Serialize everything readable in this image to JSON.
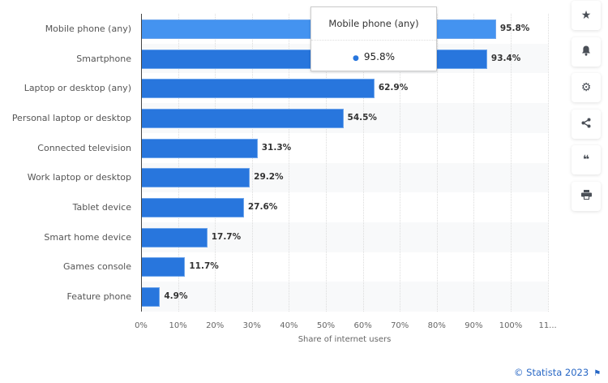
{
  "chart_data": {
    "type": "bar",
    "orientation": "horizontal",
    "title": "",
    "categories": [
      "Mobile phone (any)",
      "Smartphone",
      "Laptop or desktop (any)",
      "Personal laptop or desktop",
      "Connected television",
      "Work laptop or desktop",
      "Tablet device",
      "Smart home device",
      "Games console",
      "Feature phone"
    ],
    "values": [
      95.8,
      93.4,
      62.9,
      54.5,
      31.3,
      29.2,
      27.6,
      17.7,
      11.7,
      4.9
    ],
    "value_labels": [
      "95.8%",
      "93.4%",
      "62.9%",
      "54.5%",
      "31.3%",
      "29.2%",
      "27.6%",
      "17.7%",
      "11.7%",
      "4.9%"
    ],
    "xlabel": "Share of internet users",
    "ylabel": "",
    "xlim": [
      0,
      110
    ],
    "x_ticks": [
      "0%",
      "10%",
      "20%",
      "30%",
      "40%",
      "50%",
      "60%",
      "70%",
      "80%",
      "90%",
      "100%",
      "11..."
    ],
    "grid": true,
    "legend": null,
    "highlighted_index": 0
  },
  "tooltip": {
    "title": "Mobile phone (any)",
    "value": "95.8%"
  },
  "sidebar": {
    "buttons": [
      {
        "name": "favorite",
        "glyph": "★"
      },
      {
        "name": "notification",
        "glyph": "🔔"
      },
      {
        "name": "settings",
        "glyph": "⚙"
      },
      {
        "name": "share",
        "glyph": "<"
      },
      {
        "name": "cite",
        "glyph": "❝"
      },
      {
        "name": "print",
        "glyph": "⎙"
      }
    ]
  },
  "footer": {
    "credit": "© Statista 2023",
    "flag_glyph": "⚑"
  },
  "colors": {
    "bar": "#2876dd",
    "bar_highlight": "#4493f0",
    "credit": "#2767c5"
  }
}
